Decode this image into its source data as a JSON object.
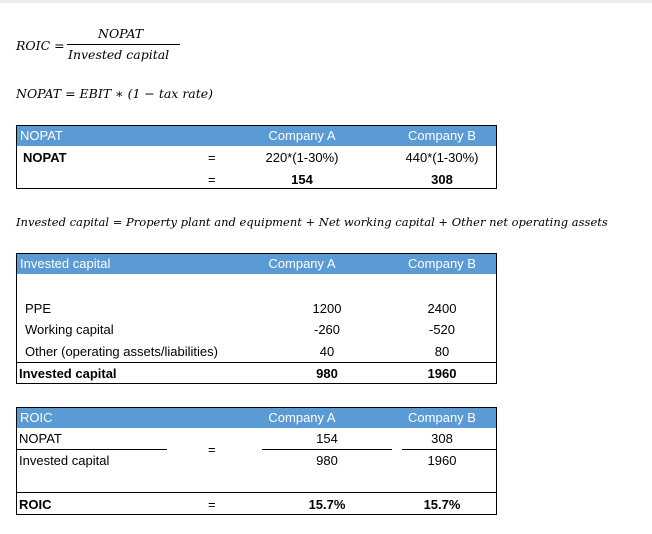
{
  "formulas": {
    "roic_lhs": "ROIC =",
    "roic_num": "NOPAT",
    "roic_den": "Invested capital",
    "nopat": "NOPAT  = EBIT  ∗ (1 − tax rate)",
    "invested": "Invested capital  = Property plant and equipment + Net working capital + Other net operating assets"
  },
  "nopat_table": {
    "header": [
      "NOPAT",
      "Company A",
      "Company B"
    ],
    "row1": {
      "label": "NOPAT",
      "eq": "=",
      "a": "220*(1-30%)",
      "b": "440*(1-30%)"
    },
    "row2": {
      "eq": "=",
      "a": "154",
      "b": "308"
    }
  },
  "invested_table": {
    "header": [
      "Invested capital",
      "Company A",
      "Company B"
    ],
    "rows": [
      {
        "label": "PPE",
        "a": "1200",
        "b": "2400"
      },
      {
        "label": "Working capital",
        "a": "-260",
        "b": "-520"
      },
      {
        "label": "Other (operating assets/liabilities)",
        "a": "40",
        "b": "80"
      }
    ],
    "total": {
      "label": "Invested capital",
      "a": "980",
      "b": "1960"
    }
  },
  "roic_table": {
    "header": [
      "ROIC",
      "Company A",
      "Company B"
    ],
    "num": {
      "label": "NOPAT",
      "a": "154",
      "b": "308"
    },
    "den": {
      "label": "Invested capital",
      "a": "980",
      "b": "1960"
    },
    "eq": "=",
    "result": {
      "label": "ROIC",
      "eq": "=",
      "a": "15.7%",
      "b": "15.7%"
    }
  },
  "colors": {
    "header_bg": "#5b9bd5",
    "header_text": "#ffffff"
  }
}
